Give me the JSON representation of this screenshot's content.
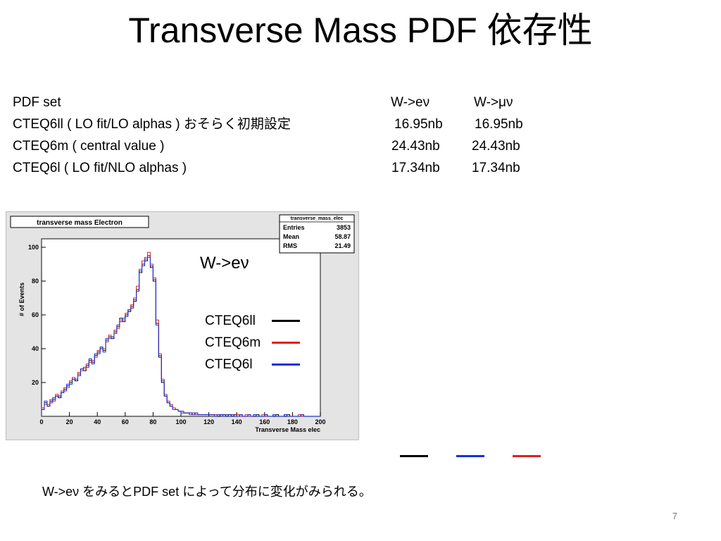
{
  "title": "Transverse Mass PDF 依存性",
  "table": {
    "header": [
      "PDF   set",
      "W->eν",
      "W->μν"
    ],
    "rows": [
      [
        "CTEQ6ll   ( LO fit/LO alphas ) おそらく初期設定",
        "16.95nb",
        "16.95nb"
      ],
      [
        "CTEQ6m ( central value )",
        "24.43nb",
        "24.43nb"
      ],
      [
        "CTEQ6l    ( LO fit/NLO alphas )",
        "17.34nb",
        "17.34nb"
      ]
    ]
  },
  "plot": {
    "title": "transverse mass Electron",
    "stats": {
      "name": "transverse_mass_elec",
      "rows": [
        [
          "Entries",
          "3853"
        ],
        [
          "Mean",
          "58.87"
        ],
        [
          "RMS",
          "21.49"
        ]
      ]
    },
    "channel_label": "W->eν",
    "legend": [
      {
        "name": "CTEQ6ll",
        "color": "#000000"
      },
      {
        "name": "CTEQ6m",
        "color": "#e02020"
      },
      {
        "name": "CTEQ6l",
        "color": "#1030e0"
      }
    ]
  },
  "chart_data": {
    "type": "line",
    "title": "transverse mass Electron",
    "xlabel": "Transverse Mass elec",
    "ylabel": "# of Events",
    "xlim": [
      0,
      200
    ],
    "ylim": [
      0,
      105
    ],
    "xticks": [
      0,
      20,
      40,
      60,
      80,
      100,
      120,
      140,
      160,
      180,
      200
    ],
    "yticks": [
      20,
      40,
      60,
      80,
      100
    ],
    "grid": false,
    "x": [
      1,
      3,
      5,
      7,
      9,
      11,
      13,
      15,
      17,
      19,
      21,
      23,
      25,
      27,
      29,
      31,
      33,
      35,
      37,
      39,
      41,
      43,
      45,
      47,
      49,
      51,
      53,
      55,
      57,
      59,
      61,
      63,
      65,
      67,
      69,
      71,
      73,
      75,
      77,
      79,
      81,
      83,
      85,
      87,
      89,
      91,
      93,
      95,
      97,
      99,
      101,
      103,
      105,
      107,
      109,
      111,
      113,
      115,
      117,
      119,
      121,
      123,
      125,
      127,
      129,
      131,
      133,
      135,
      137,
      139,
      141,
      143,
      145,
      147,
      149,
      151,
      153,
      155,
      157,
      159,
      161,
      163,
      165,
      167,
      169,
      171,
      173,
      175,
      177,
      179,
      181,
      183,
      185,
      187,
      189,
      191,
      193,
      195,
      197,
      199
    ],
    "series": [
      {
        "name": "CTEQ6ll",
        "color": "#000000",
        "values": [
          4,
          8,
          6,
          9,
          10,
          12,
          11,
          14,
          16,
          18,
          20,
          22,
          21,
          25,
          28,
          27,
          30,
          33,
          32,
          36,
          38,
          40,
          39,
          45,
          47,
          46,
          50,
          53,
          58,
          56,
          60,
          62,
          65,
          68,
          75,
          85,
          90,
          92,
          95,
          88,
          80,
          55,
          35,
          20,
          12,
          8,
          6,
          5,
          4,
          3,
          3,
          2,
          2,
          2,
          1,
          2,
          1,
          1,
          1,
          1,
          1,
          1,
          1,
          0,
          1,
          1,
          0,
          1,
          0,
          1,
          0,
          1,
          0,
          0,
          1,
          0,
          0,
          1,
          0,
          0,
          1,
          0,
          0,
          0,
          1,
          0,
          0,
          0,
          1,
          0,
          0,
          0,
          0,
          1,
          0,
          0,
          0,
          0,
          0,
          0
        ]
      },
      {
        "name": "CTEQ6m",
        "color": "#e02020",
        "values": [
          5,
          7,
          7,
          10,
          9,
          13,
          12,
          15,
          17,
          17,
          21,
          23,
          22,
          26,
          27,
          28,
          31,
          32,
          33,
          35,
          39,
          41,
          40,
          44,
          48,
          47,
          51,
          52,
          57,
          57,
          61,
          63,
          66,
          70,
          77,
          87,
          92,
          94,
          97,
          90,
          82,
          57,
          37,
          22,
          13,
          9,
          7,
          5,
          4,
          3,
          3,
          2,
          2,
          2,
          1,
          2,
          1,
          1,
          1,
          1,
          1,
          1,
          1,
          1,
          1,
          0,
          1,
          0,
          1,
          0,
          1,
          0,
          0,
          1,
          0,
          0,
          1,
          0,
          0,
          1,
          0,
          0,
          0,
          1,
          0,
          0,
          0,
          1,
          0,
          0,
          0,
          0,
          1,
          0,
          0,
          0,
          0,
          0,
          0,
          0
        ]
      },
      {
        "name": "CTEQ6l",
        "color": "#1030e0",
        "values": [
          4,
          9,
          6,
          8,
          11,
          12,
          12,
          14,
          15,
          19,
          19,
          22,
          22,
          24,
          28,
          29,
          29,
          34,
          31,
          37,
          37,
          41,
          38,
          46,
          46,
          47,
          49,
          54,
          56,
          58,
          59,
          63,
          64,
          69,
          74,
          86,
          89,
          93,
          94,
          89,
          81,
          54,
          36,
          21,
          12,
          8,
          6,
          4,
          4,
          3,
          2,
          2,
          2,
          1,
          2,
          1,
          1,
          1,
          1,
          1,
          1,
          1,
          0,
          1,
          1,
          0,
          1,
          0,
          1,
          0,
          0,
          1,
          0,
          0,
          1,
          0,
          1,
          0,
          0,
          0,
          1,
          0,
          0,
          1,
          0,
          0,
          0,
          1,
          0,
          0,
          0,
          0,
          0,
          1,
          0,
          0,
          0,
          0,
          0,
          0
        ]
      }
    ]
  },
  "bottom_lines": [
    {
      "color": "#000000"
    },
    {
      "color": "#1030e0"
    },
    {
      "color": "#e02020"
    }
  ],
  "note": "W->eν をみるとPDF   set によって分布に変化がみられる。",
  "page_number": "7"
}
